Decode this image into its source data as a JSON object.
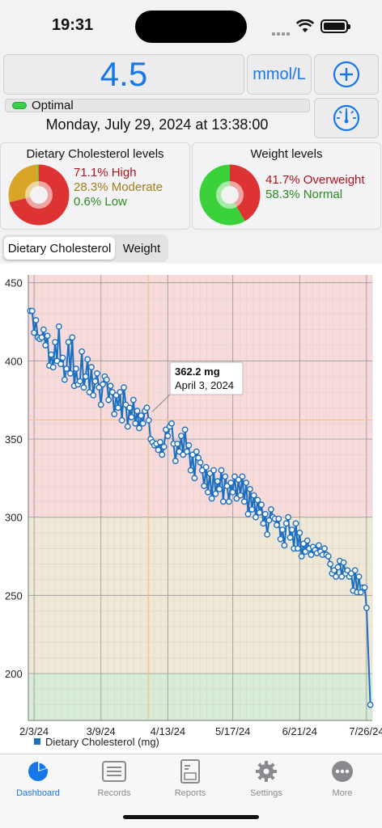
{
  "status_bar": {
    "time": "19:31"
  },
  "reading": {
    "value": "4.5",
    "unit": "mmol/L",
    "status": "Optimal",
    "datetime": "Monday, July 29, 2024 at 13:38:00"
  },
  "summary": {
    "cholesterol": {
      "title": "Dietary Cholesterol levels",
      "items": [
        {
          "label": "71.1% High",
          "color": "#b0141c",
          "fraction": 0.711
        },
        {
          "label": "28.3% Moderate",
          "color": "#a37f12",
          "fraction": 0.283
        },
        {
          "label": "0.6% Low",
          "color": "#2b8a1e",
          "fraction": 0.006
        }
      ]
    },
    "weight": {
      "title": "Weight levels",
      "items": [
        {
          "label": "41.7% Overweight",
          "color": "#b0141c",
          "fraction": 0.417
        },
        {
          "label": "58.3% Normal",
          "color": "#2b8a1e",
          "fraction": 0.583
        }
      ]
    }
  },
  "tabs": [
    {
      "label": "Dietary Cholesterol",
      "selected": true
    },
    {
      "label": "Weight",
      "selected": false
    }
  ],
  "chart_data": {
    "type": "line",
    "ylim": [
      170,
      455
    ],
    "y_ticks": [
      200,
      250,
      300,
      350,
      400,
      450
    ],
    "x_ticks": [
      "2/3/24",
      "3/9/24",
      "4/13/24",
      "5/17/24",
      "6/21/24",
      "7/26/24"
    ],
    "xlim": [
      "2024-01-31",
      "2024-07-29"
    ],
    "bands": [
      {
        "from": 170,
        "to": 200,
        "color": "#d6ecd6"
      },
      {
        "from": 200,
        "to": 300,
        "color": "#efe8d4"
      },
      {
        "from": 300,
        "to": 455,
        "color": "#f9dada"
      }
    ],
    "grid": true,
    "legend": "Dietary Cholesterol (mg)",
    "series_color": "#1a6fc0",
    "tooltip": {
      "value": "362.2 mg",
      "date": "April 3, 2024",
      "x": "2024-04-03",
      "y": 362.2
    },
    "points": [
      [
        "2024-02-01",
        432
      ],
      [
        "2024-02-02",
        432
      ],
      [
        "2024-02-03",
        418
      ],
      [
        "2024-02-04",
        426
      ],
      [
        "2024-02-05",
        415
      ],
      [
        "2024-02-06",
        414
      ],
      [
        "2024-02-07",
        415
      ],
      [
        "2024-02-08",
        420
      ],
      [
        "2024-02-09",
        410
      ],
      [
        "2024-02-10",
        416
      ],
      [
        "2024-02-11",
        397
      ],
      [
        "2024-02-12",
        404
      ],
      [
        "2024-02-13",
        396
      ],
      [
        "2024-02-14",
        412
      ],
      [
        "2024-02-15",
        400
      ],
      [
        "2024-02-16",
        422
      ],
      [
        "2024-02-17",
        398
      ],
      [
        "2024-02-18",
        402
      ],
      [
        "2024-02-19",
        388
      ],
      [
        "2024-02-20",
        395
      ],
      [
        "2024-02-21",
        412
      ],
      [
        "2024-02-22",
        392
      ],
      [
        "2024-02-23",
        415
      ],
      [
        "2024-02-24",
        384
      ],
      [
        "2024-02-25",
        395
      ],
      [
        "2024-02-26",
        385
      ],
      [
        "2024-02-27",
        387
      ],
      [
        "2024-02-28",
        406
      ],
      [
        "2024-02-29",
        383
      ],
      [
        "2024-03-01",
        390
      ],
      [
        "2024-03-02",
        401
      ],
      [
        "2024-03-03",
        380
      ],
      [
        "2024-03-04",
        396
      ],
      [
        "2024-03-05",
        378
      ],
      [
        "2024-03-06",
        387
      ],
      [
        "2024-03-07",
        392
      ],
      [
        "2024-03-08",
        383
      ],
      [
        "2024-03-09",
        372
      ],
      [
        "2024-03-10",
        385
      ],
      [
        "2024-03-11",
        390
      ],
      [
        "2024-03-12",
        388
      ],
      [
        "2024-03-13",
        375
      ],
      [
        "2024-03-14",
        384
      ],
      [
        "2024-03-15",
        380
      ],
      [
        "2024-03-16",
        366
      ],
      [
        "2024-03-17",
        378
      ],
      [
        "2024-03-18",
        370
      ],
      [
        "2024-03-19",
        380
      ],
      [
        "2024-03-20",
        362
      ],
      [
        "2024-03-21",
        383
      ],
      [
        "2024-03-22",
        372
      ],
      [
        "2024-03-23",
        358
      ],
      [
        "2024-03-24",
        370
      ],
      [
        "2024-03-25",
        364
      ],
      [
        "2024-03-26",
        375
      ],
      [
        "2024-03-27",
        360
      ],
      [
        "2024-03-28",
        368
      ],
      [
        "2024-03-29",
        357
      ],
      [
        "2024-03-30",
        365
      ],
      [
        "2024-03-31",
        360
      ],
      [
        "2024-04-01",
        368
      ],
      [
        "2024-04-02",
        370
      ],
      [
        "2024-04-03",
        362
      ],
      [
        "2024-04-04",
        350
      ],
      [
        "2024-04-05",
        348
      ],
      [
        "2024-04-06",
        346
      ],
      [
        "2024-04-07",
        347
      ],
      [
        "2024-04-08",
        343
      ],
      [
        "2024-04-09",
        348
      ],
      [
        "2024-04-10",
        340
      ],
      [
        "2024-04-11",
        345
      ],
      [
        "2024-04-12",
        356
      ],
      [
        "2024-04-13",
        352
      ],
      [
        "2024-04-14",
        358
      ],
      [
        "2024-04-15",
        360
      ],
      [
        "2024-04-16",
        347
      ],
      [
        "2024-04-17",
        336
      ],
      [
        "2024-04-18",
        347
      ],
      [
        "2024-04-19",
        342
      ],
      [
        "2024-04-20",
        352
      ],
      [
        "2024-04-21",
        340
      ],
      [
        "2024-04-22",
        356
      ],
      [
        "2024-04-23",
        342
      ],
      [
        "2024-04-24",
        346
      ],
      [
        "2024-04-25",
        330
      ],
      [
        "2024-04-26",
        340
      ],
      [
        "2024-04-27",
        325
      ],
      [
        "2024-04-28",
        342
      ],
      [
        "2024-04-29",
        338
      ],
      [
        "2024-04-30",
        335
      ],
      [
        "2024-05-01",
        330
      ],
      [
        "2024-05-02",
        320
      ],
      [
        "2024-05-03",
        332
      ],
      [
        "2024-05-04",
        316
      ],
      [
        "2024-05-05",
        328
      ],
      [
        "2024-05-06",
        312
      ],
      [
        "2024-05-07",
        330
      ],
      [
        "2024-05-08",
        315
      ],
      [
        "2024-05-09",
        323
      ],
      [
        "2024-05-10",
        318
      ],
      [
        "2024-05-11",
        330
      ],
      [
        "2024-05-12",
        310
      ],
      [
        "2024-05-13",
        326
      ],
      [
        "2024-05-14",
        320
      ],
      [
        "2024-05-15",
        310
      ],
      [
        "2024-05-16",
        322
      ],
      [
        "2024-05-17",
        316
      ],
      [
        "2024-05-18",
        326
      ],
      [
        "2024-05-19",
        312
      ],
      [
        "2024-05-20",
        324
      ],
      [
        "2024-05-21",
        314
      ],
      [
        "2024-05-22",
        326
      ],
      [
        "2024-05-23",
        310
      ],
      [
        "2024-05-24",
        322
      ],
      [
        "2024-05-25",
        302
      ],
      [
        "2024-05-26",
        318
      ],
      [
        "2024-05-27",
        305
      ],
      [
        "2024-05-28",
        314
      ],
      [
        "2024-05-29",
        300
      ],
      [
        "2024-05-30",
        311
      ],
      [
        "2024-05-31",
        303
      ],
      [
        "2024-06-01",
        308
      ],
      [
        "2024-06-02",
        296
      ],
      [
        "2024-06-03",
        302
      ],
      [
        "2024-06-04",
        289
      ],
      [
        "2024-06-05",
        298
      ],
      [
        "2024-06-06",
        305
      ],
      [
        "2024-06-07",
        300
      ],
      [
        "2024-06-08",
        299
      ],
      [
        "2024-06-09",
        295
      ],
      [
        "2024-06-10",
        299
      ],
      [
        "2024-06-11",
        286
      ],
      [
        "2024-06-12",
        292
      ],
      [
        "2024-06-13",
        282
      ],
      [
        "2024-06-14",
        296
      ],
      [
        "2024-06-15",
        300
      ],
      [
        "2024-06-16",
        287
      ],
      [
        "2024-06-17",
        292
      ],
      [
        "2024-06-18",
        280
      ],
      [
        "2024-06-19",
        296
      ],
      [
        "2024-06-20",
        280
      ],
      [
        "2024-06-21",
        290
      ],
      [
        "2024-06-22",
        275
      ],
      [
        "2024-06-23",
        283
      ],
      [
        "2024-06-24",
        278
      ],
      [
        "2024-06-25",
        285
      ],
      [
        "2024-06-26",
        280
      ],
      [
        "2024-06-27",
        276
      ],
      [
        "2024-06-28",
        281
      ],
      [
        "2024-06-29",
        279
      ],
      [
        "2024-06-30",
        277
      ],
      [
        "2024-07-01",
        282
      ],
      [
        "2024-07-02",
        278
      ],
      [
        "2024-07-03",
        276
      ],
      [
        "2024-07-04",
        280
      ],
      [
        "2024-07-05",
        276
      ],
      [
        "2024-07-06",
        275
      ],
      [
        "2024-07-07",
        270
      ],
      [
        "2024-07-08",
        264
      ],
      [
        "2024-07-09",
        266
      ],
      [
        "2024-07-10",
        262
      ],
      [
        "2024-07-11",
        268
      ],
      [
        "2024-07-12",
        272
      ],
      [
        "2024-07-13",
        262
      ],
      [
        "2024-07-14",
        271
      ],
      [
        "2024-07-15",
        264
      ],
      [
        "2024-07-16",
        266
      ],
      [
        "2024-07-17",
        262
      ],
      [
        "2024-07-18",
        264
      ],
      [
        "2024-07-19",
        253
      ],
      [
        "2024-07-20",
        266
      ],
      [
        "2024-07-21",
        252
      ],
      [
        "2024-07-22",
        262
      ],
      [
        "2024-07-23",
        252
      ],
      [
        "2024-07-24",
        255
      ],
      [
        "2024-07-25",
        255
      ],
      [
        "2024-07-26",
        242
      ],
      [
        "2024-07-28",
        180
      ]
    ]
  },
  "tabbar": [
    {
      "label": "Dashboard",
      "icon": "dashboard-pie-icon",
      "active": true
    },
    {
      "label": "Records",
      "icon": "records-list-icon",
      "active": false
    },
    {
      "label": "Reports",
      "icon": "reports-doc-icon",
      "active": false
    },
    {
      "label": "Settings",
      "icon": "settings-gear-icon",
      "active": false
    },
    {
      "label": "More",
      "icon": "more-dots-icon",
      "active": false
    }
  ]
}
